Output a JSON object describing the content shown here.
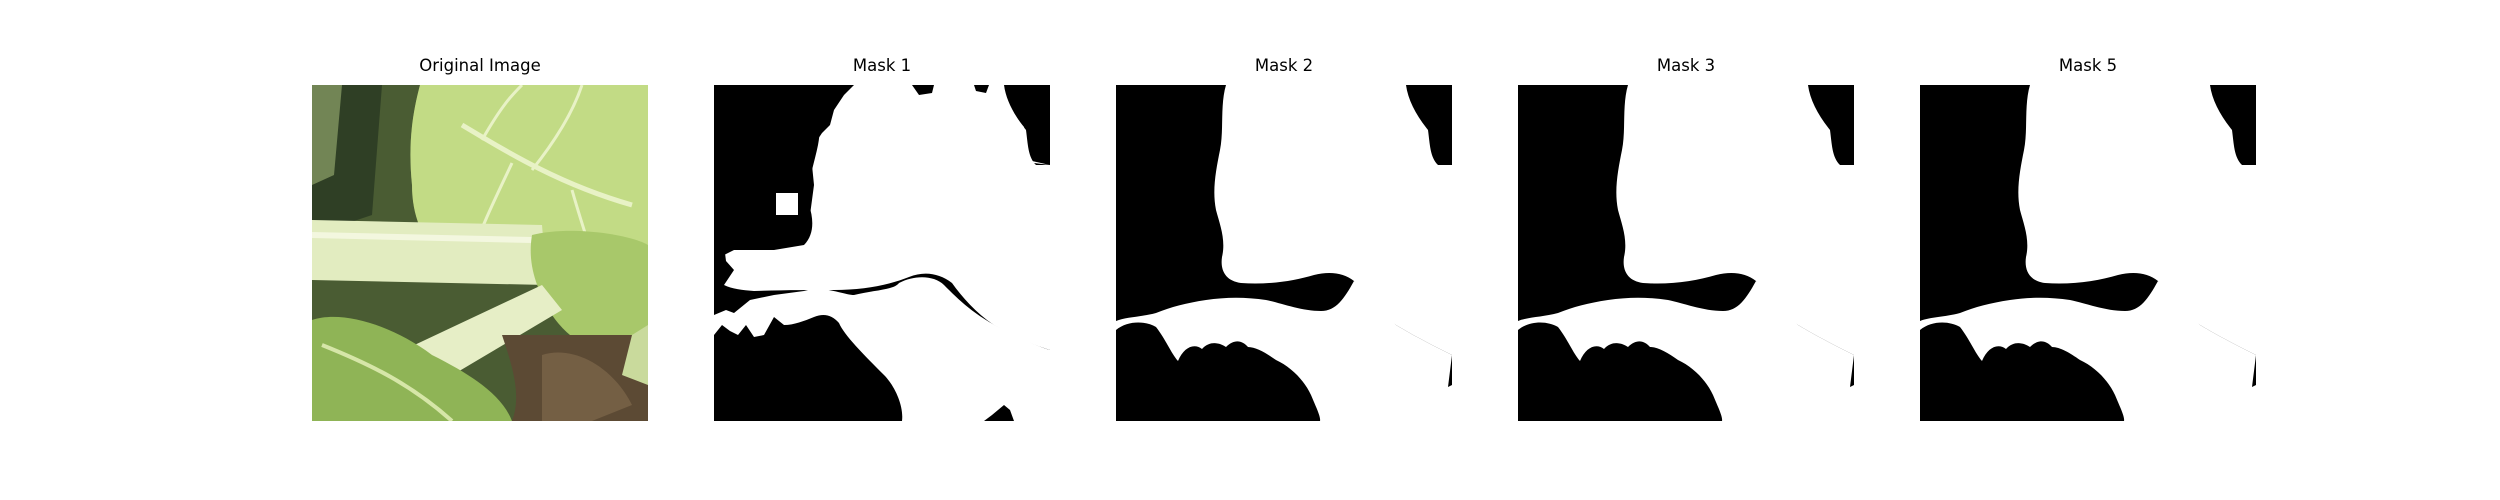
{
  "figure": {
    "panels": [
      {
        "title": "Original Image"
      },
      {
        "title": "Mask 1"
      },
      {
        "title": "Mask 2"
      },
      {
        "title": "Mask 3"
      },
      {
        "title": "Mask 5"
      }
    ]
  },
  "colors": {
    "background": "#ffffff",
    "mask_foreground": "#ffffff",
    "mask_background": "#000000",
    "leaf_light": "#c9de8a",
    "leaf_mid": "#9fc35a",
    "leaf_dark": "#6e9a3a",
    "stem": "#e4edc4",
    "shadow": "#2f3a22"
  }
}
